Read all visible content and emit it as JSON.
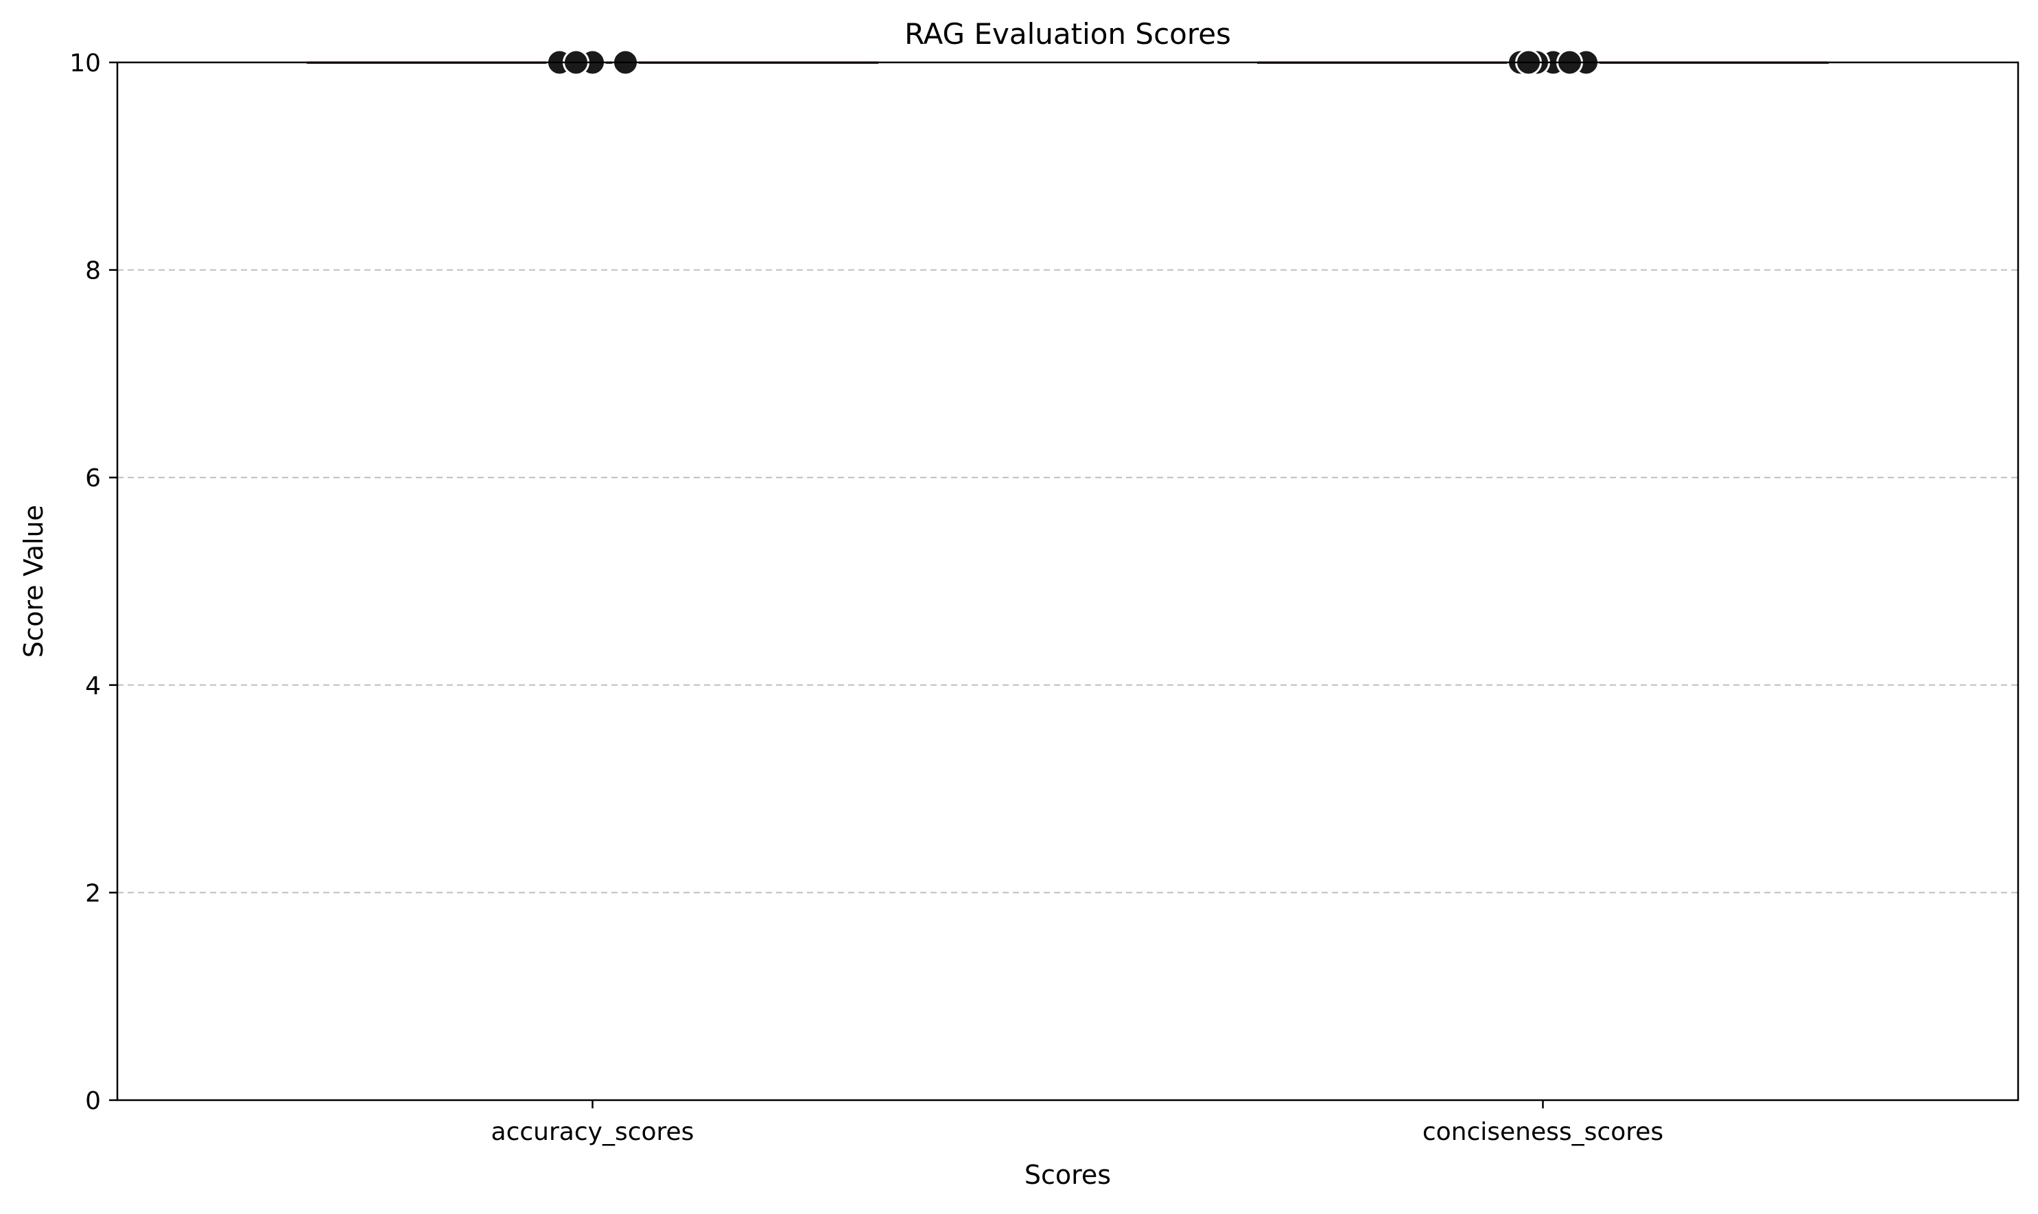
{
  "chart_data": {
    "type": "box",
    "title": "RAG Evaluation Scores",
    "xlabel": "Scores",
    "ylabel": "Score Value",
    "categories": [
      "accuracy_scores",
      "conciseness_scores"
    ],
    "ylim": [
      0,
      10
    ],
    "yticks": [
      0,
      2,
      4,
      6,
      8,
      10
    ],
    "grid": "y-dashed",
    "boxes": [
      {
        "category": "accuracy_scores",
        "min": 10,
        "q1": 10,
        "median": 10,
        "q3": 10,
        "max": 10
      },
      {
        "category": "conciseness_scores",
        "min": 10,
        "q1": 10,
        "median": 10,
        "q3": 10,
        "max": 10
      }
    ],
    "points": [
      {
        "category": "accuracy_scores",
        "values": [
          10,
          10,
          10,
          10
        ]
      },
      {
        "category": "conciseness_scores",
        "values": [
          10,
          10,
          10,
          10,
          10,
          10
        ]
      }
    ],
    "colors": {
      "median": "#c0392b",
      "point_fill": "#1a1a1a",
      "point_edge": "#ffffff",
      "grid": "#bfbfbf"
    }
  }
}
